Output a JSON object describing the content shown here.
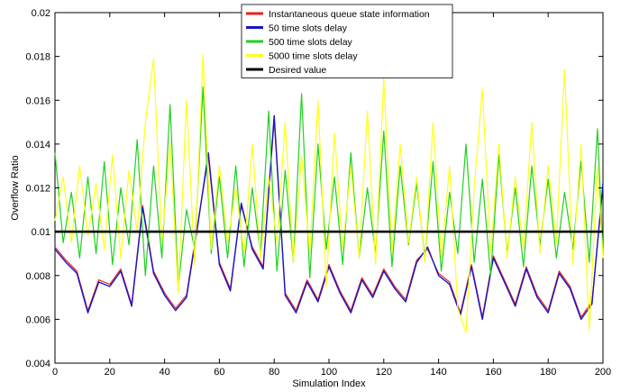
{
  "chart_data": {
    "type": "line",
    "title": "",
    "xlabel": "Simulation Index",
    "ylabel": "Overflow Ratio",
    "xlim": [
      0,
      200
    ],
    "ylim": [
      0.004,
      0.02
    ],
    "x_ticks": [
      0,
      20,
      40,
      60,
      80,
      100,
      120,
      140,
      160,
      180,
      200
    ],
    "y_ticks": [
      0.004,
      0.006,
      0.008,
      0.01,
      0.012,
      0.014,
      0.016,
      0.018,
      0.02
    ],
    "x_tick_labels": [
      "0",
      "20",
      "40",
      "60",
      "80",
      "100",
      "120",
      "140",
      "160",
      "180",
      "200"
    ],
    "y_tick_labels": [
      "0.004",
      "0.006",
      "0.008",
      "0.01",
      "0.012",
      "0.014",
      "0.016",
      "0.018",
      "0.02"
    ],
    "grid": false,
    "legend_position": "top-center",
    "series": [
      {
        "name": "Instantaneous queue state information",
        "color": "#e8211b",
        "width": 1.2,
        "x": [
          0,
          4,
          8,
          12,
          16,
          20,
          24,
          28,
          32,
          36,
          40,
          44,
          48,
          52,
          56,
          60,
          64,
          68,
          72,
          76,
          80,
          84,
          88,
          92,
          96,
          100,
          104,
          108,
          112,
          116,
          120,
          124,
          128,
          132,
          136,
          140,
          144,
          148,
          152,
          156,
          160,
          164,
          168,
          172,
          176,
          180,
          184,
          188,
          192,
          196,
          200
        ],
        "values": [
          0.0093,
          0.0087,
          0.0082,
          0.0064,
          0.0078,
          0.0076,
          0.0083,
          0.0067,
          0.0112,
          0.0082,
          0.0072,
          0.0065,
          0.0071,
          0.0103,
          0.0134,
          0.0086,
          0.0074,
          0.0112,
          0.0093,
          0.0084,
          0.0151,
          0.0072,
          0.0064,
          0.0078,
          0.0069,
          0.0085,
          0.0073,
          0.0064,
          0.0079,
          0.0071,
          0.0083,
          0.0075,
          0.0069,
          0.0087,
          0.0092,
          0.0081,
          0.0077,
          0.0063,
          0.0085,
          0.0061,
          0.0089,
          0.0078,
          0.0067,
          0.0084,
          0.0071,
          0.0064,
          0.0082,
          0.0075,
          0.0061,
          0.0068,
          0.0121
        ]
      },
      {
        "name": "50 time slots delay",
        "color": "#1616c8",
        "width": 1.4,
        "x": [
          0,
          4,
          8,
          12,
          16,
          20,
          24,
          28,
          32,
          36,
          40,
          44,
          48,
          52,
          56,
          60,
          64,
          68,
          72,
          76,
          80,
          84,
          88,
          92,
          96,
          100,
          104,
          108,
          112,
          116,
          120,
          124,
          128,
          132,
          136,
          140,
          144,
          148,
          152,
          156,
          160,
          164,
          168,
          172,
          176,
          180,
          184,
          188,
          192,
          196,
          200
        ],
        "values": [
          0.0092,
          0.0086,
          0.0081,
          0.0063,
          0.0077,
          0.0075,
          0.0082,
          0.0066,
          0.0111,
          0.0081,
          0.0071,
          0.0064,
          0.007,
          0.0102,
          0.0136,
          0.0085,
          0.0073,
          0.0113,
          0.0092,
          0.0083,
          0.0153,
          0.0071,
          0.0063,
          0.0077,
          0.0068,
          0.0084,
          0.0072,
          0.0063,
          0.0078,
          0.007,
          0.0082,
          0.0074,
          0.0068,
          0.0086,
          0.0093,
          0.008,
          0.0076,
          0.0062,
          0.0084,
          0.006,
          0.0088,
          0.0077,
          0.0066,
          0.0083,
          0.007,
          0.0063,
          0.0081,
          0.0074,
          0.006,
          0.0067,
          0.0122
        ]
      },
      {
        "name": "500 time slots delay",
        "color": "#1fd11f",
        "width": 1.2,
        "x": [
          0,
          3,
          6,
          9,
          12,
          15,
          18,
          21,
          24,
          27,
          30,
          33,
          36,
          39,
          42,
          45,
          48,
          51,
          54,
          57,
          60,
          63,
          66,
          69,
          72,
          75,
          78,
          81,
          84,
          87,
          90,
          93,
          96,
          99,
          102,
          105,
          108,
          111,
          114,
          117,
          120,
          123,
          126,
          129,
          132,
          135,
          138,
          141,
          144,
          147,
          150,
          153,
          156,
          159,
          162,
          165,
          168,
          171,
          174,
          177,
          180,
          183,
          186,
          189,
          192,
          195,
          198,
          200
        ],
        "values": [
          0.0136,
          0.0095,
          0.0118,
          0.0088,
          0.0125,
          0.009,
          0.0132,
          0.0085,
          0.012,
          0.0094,
          0.0142,
          0.008,
          0.013,
          0.0088,
          0.0158,
          0.0075,
          0.011,
          0.0092,
          0.0166,
          0.009,
          0.0125,
          0.0088,
          0.013,
          0.0084,
          0.012,
          0.009,
          0.0155,
          0.0082,
          0.0128,
          0.0086,
          0.0163,
          0.0079,
          0.014,
          0.0092,
          0.0125,
          0.0085,
          0.0136,
          0.0088,
          0.012,
          0.009,
          0.0146,
          0.0084,
          0.013,
          0.0094,
          0.0122,
          0.0088,
          0.0132,
          0.0082,
          0.0118,
          0.009,
          0.014,
          0.0086,
          0.0124,
          0.008,
          0.0135,
          0.009,
          0.012,
          0.0084,
          0.013,
          0.0094,
          0.0124,
          0.0088,
          0.0118,
          0.0092,
          0.0132,
          0.0086,
          0.0147,
          0.009
        ]
      },
      {
        "name": "5000 time slots delay",
        "color": "#ffff1a",
        "width": 1.2,
        "x": [
          0,
          3,
          6,
          9,
          12,
          15,
          18,
          21,
          24,
          27,
          30,
          33,
          36,
          39,
          42,
          45,
          48,
          51,
          54,
          57,
          60,
          63,
          66,
          69,
          72,
          75,
          78,
          81,
          84,
          87,
          90,
          93,
          96,
          99,
          102,
          105,
          108,
          111,
          114,
          117,
          120,
          123,
          126,
          129,
          132,
          135,
          138,
          141,
          144,
          147,
          150,
          153,
          156,
          159,
          162,
          165,
          168,
          171,
          174,
          177,
          180,
          183,
          186,
          189,
          192,
          195,
          198,
          200
        ],
        "values": [
          0.0105,
          0.0125,
          0.0095,
          0.013,
          0.0098,
          0.0122,
          0.0092,
          0.0135,
          0.0088,
          0.0128,
          0.01,
          0.015,
          0.0179,
          0.0095,
          0.014,
          0.0072,
          0.016,
          0.0085,
          0.0181,
          0.0092,
          0.013,
          0.0095,
          0.012,
          0.009,
          0.014,
          0.0088,
          0.0125,
          0.0095,
          0.015,
          0.0086,
          0.0135,
          0.009,
          0.016,
          0.0075,
          0.0145,
          0.0092,
          0.013,
          0.0088,
          0.0155,
          0.0085,
          0.017,
          0.009,
          0.014,
          0.0095,
          0.0125,
          0.0086,
          0.015,
          0.0088,
          0.013,
          0.0065,
          0.0054,
          0.012,
          0.0165,
          0.009,
          0.014,
          0.0088,
          0.0125,
          0.0092,
          0.015,
          0.009,
          0.013,
          0.0095,
          0.0174,
          0.0085,
          0.014,
          0.0055,
          0.013,
          0.0088
        ]
      },
      {
        "name": "Desired value",
        "color": "#000000",
        "width": 2.6,
        "x": [
          0,
          200
        ],
        "values": [
          0.01,
          0.01
        ]
      }
    ]
  }
}
